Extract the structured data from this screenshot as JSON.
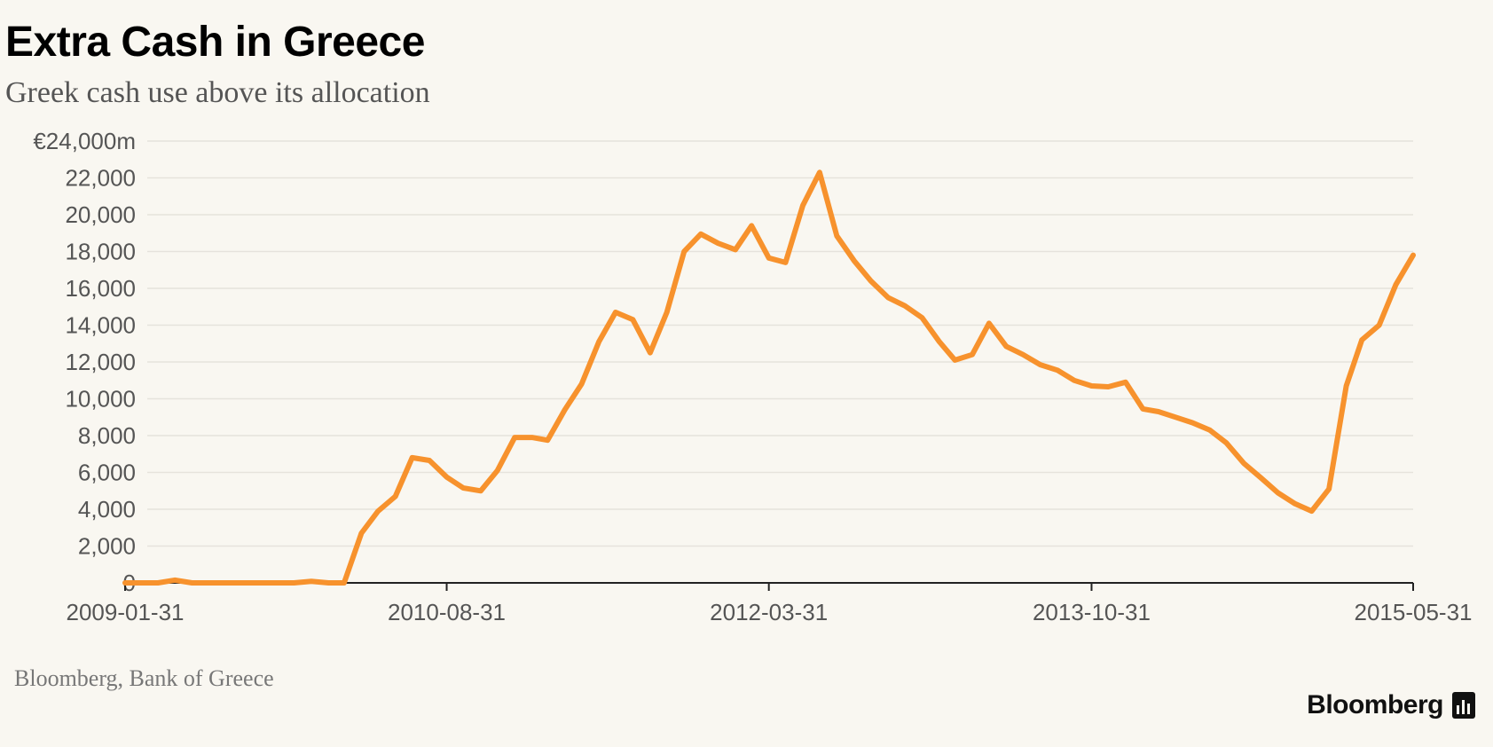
{
  "chart_data": {
    "type": "line",
    "title": "Extra Cash in Greece",
    "subtitle": "Greek cash use above its allocation",
    "xlabel": "",
    "ylabel": "",
    "ylim": [
      0,
      24000
    ],
    "y_ticks": [
      {
        "value": 24000,
        "label": "€24,000m"
      },
      {
        "value": 22000,
        "label": "22,000"
      },
      {
        "value": 20000,
        "label": "20,000"
      },
      {
        "value": 18000,
        "label": "18,000"
      },
      {
        "value": 16000,
        "label": "16,000"
      },
      {
        "value": 14000,
        "label": "14,000"
      },
      {
        "value": 12000,
        "label": "12,000"
      },
      {
        "value": 10000,
        "label": "10,000"
      },
      {
        "value": 8000,
        "label": "8,000"
      },
      {
        "value": 6000,
        "label": "6,000"
      },
      {
        "value": 4000,
        "label": "4,000"
      },
      {
        "value": 2000,
        "label": "2,000"
      },
      {
        "value": 0,
        "label": "0"
      }
    ],
    "x_ticks": [
      "2009-01-31",
      "2010-08-31",
      "2012-03-31",
      "2013-10-31",
      "2015-05-31"
    ],
    "grid": true,
    "color": "#f7922d",
    "series": [
      {
        "x": [
          "2009-01-31",
          "2009-02-28",
          "2009-03-31",
          "2009-04-30",
          "2009-05-31",
          "2009-06-30",
          "2009-07-31",
          "2009-08-31",
          "2009-09-30",
          "2009-10-31",
          "2009-11-30",
          "2009-12-31",
          "2010-01-31",
          "2010-02-28",
          "2010-03-31",
          "2010-04-30",
          "2010-05-31",
          "2010-06-30",
          "2010-07-31",
          "2010-08-31",
          "2010-09-30",
          "2010-10-31",
          "2010-11-30",
          "2010-12-31",
          "2011-01-31",
          "2011-02-28",
          "2011-03-31",
          "2011-04-30",
          "2011-05-31",
          "2011-06-30",
          "2011-07-31",
          "2011-08-31",
          "2011-09-30",
          "2011-10-31",
          "2011-11-30",
          "2011-12-31",
          "2012-01-31",
          "2012-02-29",
          "2012-03-31",
          "2012-04-30",
          "2012-05-31",
          "2012-06-30",
          "2012-07-31",
          "2012-08-31",
          "2012-09-30",
          "2012-10-31",
          "2012-11-30",
          "2012-12-31",
          "2013-01-31",
          "2013-02-28",
          "2013-03-31",
          "2013-04-30",
          "2013-05-31",
          "2013-06-30",
          "2013-07-31",
          "2013-08-31",
          "2013-09-30",
          "2013-10-31",
          "2013-11-30",
          "2013-12-31",
          "2014-01-31",
          "2014-02-28",
          "2014-03-31",
          "2014-04-30",
          "2014-05-31",
          "2014-06-30",
          "2014-07-31",
          "2014-08-31",
          "2014-09-30",
          "2014-10-31",
          "2014-11-30",
          "2014-12-31",
          "2015-01-31",
          "2015-02-28",
          "2015-03-31",
          "2015-04-30",
          "2015-05-31"
        ],
        "values": [
          0,
          0,
          0,
          150,
          0,
          0,
          0,
          0,
          0,
          0,
          0,
          80,
          0,
          0,
          2700,
          3900,
          4700,
          6800,
          6650,
          5750,
          5150,
          5000,
          6100,
          7900,
          7900,
          7750,
          9400,
          10800,
          13100,
          14700,
          14300,
          12500,
          14700,
          18000,
          18950,
          18450,
          18100,
          19400,
          17650,
          17400,
          20500,
          22300,
          18850,
          17500,
          16400,
          15500,
          15050,
          14400,
          13100,
          12100,
          12400,
          14100,
          12850,
          12400,
          11850,
          11550,
          11000,
          10700,
          10650,
          10900,
          9450,
          9300,
          9000,
          8700,
          8300,
          7600,
          6500,
          5700,
          4900,
          4300,
          3900,
          5100,
          10700,
          13200,
          14000,
          16200,
          17800
        ]
      }
    ],
    "source": "Bloomberg, Bank of Greece",
    "brand": "Bloomberg"
  }
}
